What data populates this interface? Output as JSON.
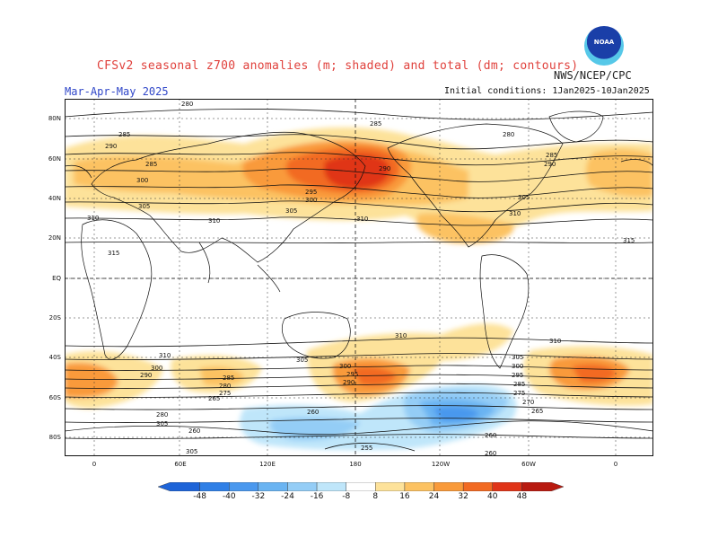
{
  "header": {
    "title": "CFSv2 seasonal z700 anomalies (m; shaded) and total (dm; contours)",
    "organization": "NWS/NCEP/CPC",
    "season": "Mar-Apr-May 2025",
    "initial_conditions": "Initial conditions: 1Jan2025-10Jan2025",
    "logo_text": "NOAA"
  },
  "axes": {
    "lat_labels": [
      "80N",
      "60N",
      "40N",
      "20N",
      "EQ",
      "20S",
      "40S",
      "60S",
      "80S"
    ],
    "lon_labels": [
      "0",
      "60E",
      "120E",
      "180",
      "120W",
      "60W",
      "0"
    ]
  },
  "colorbar": {
    "labels": [
      "-48",
      "-40",
      "-32",
      "-24",
      "-16",
      "-8",
      "8",
      "16",
      "24",
      "32",
      "40",
      "48"
    ],
    "colors": [
      "#1e64d8",
      "#2f7fe6",
      "#4a98ee",
      "#6ab4f2",
      "#94cdf6",
      "#bfe6fa",
      "#ffffff",
      "#fde29a",
      "#fcc262",
      "#f99a3a",
      "#f26a22",
      "#e03418",
      "#b81a10"
    ]
  },
  "contour_labels": {
    "nh": [
      "280",
      "285",
      "290",
      "295",
      "300",
      "305",
      "310",
      "315"
    ],
    "sh": [
      "310",
      "305",
      "300",
      "295",
      "290",
      "285",
      "280",
      "275",
      "270",
      "265",
      "260",
      "255"
    ]
  }
}
